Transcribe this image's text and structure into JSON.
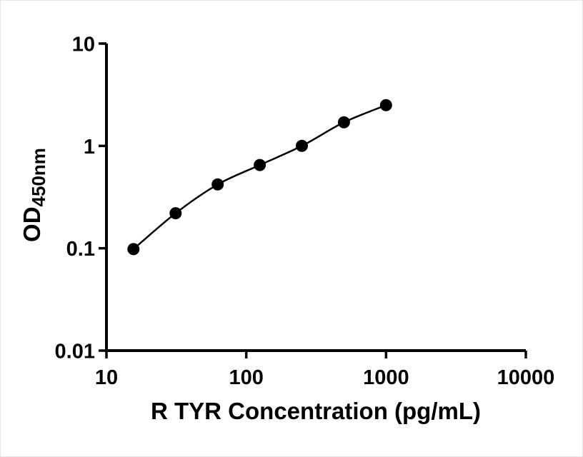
{
  "figure": {
    "background": "#ffffff"
  },
  "chart_data": {
    "type": "scatter",
    "title": "",
    "xlabel": "R TYR Concentration (pg/mL)",
    "ylabel": "OD450nm",
    "ylabel_main": "OD",
    "ylabel_sub": "450nm",
    "x_scale": "log",
    "y_scale": "log",
    "xlim": [
      10,
      10000
    ],
    "ylim": [
      0.01,
      10
    ],
    "x_ticks": [
      "10",
      "100",
      "1000",
      "10000"
    ],
    "y_ticks": [
      "0.01",
      "0.1",
      "1",
      "10"
    ],
    "grid": false,
    "legend": false,
    "marker": {
      "shape": "circle",
      "color": "#000000",
      "size": 8.5
    },
    "line": {
      "color": "#000000",
      "width": 2.5,
      "style": "smooth-fit"
    },
    "points": [
      {
        "x": 15.6,
        "y": 0.098
      },
      {
        "x": 31.25,
        "y": 0.22
      },
      {
        "x": 62.5,
        "y": 0.42
      },
      {
        "x": 125,
        "y": 0.65
      },
      {
        "x": 250,
        "y": 1.0
      },
      {
        "x": 500,
        "y": 1.7
      },
      {
        "x": 1000,
        "y": 2.5
      }
    ]
  }
}
